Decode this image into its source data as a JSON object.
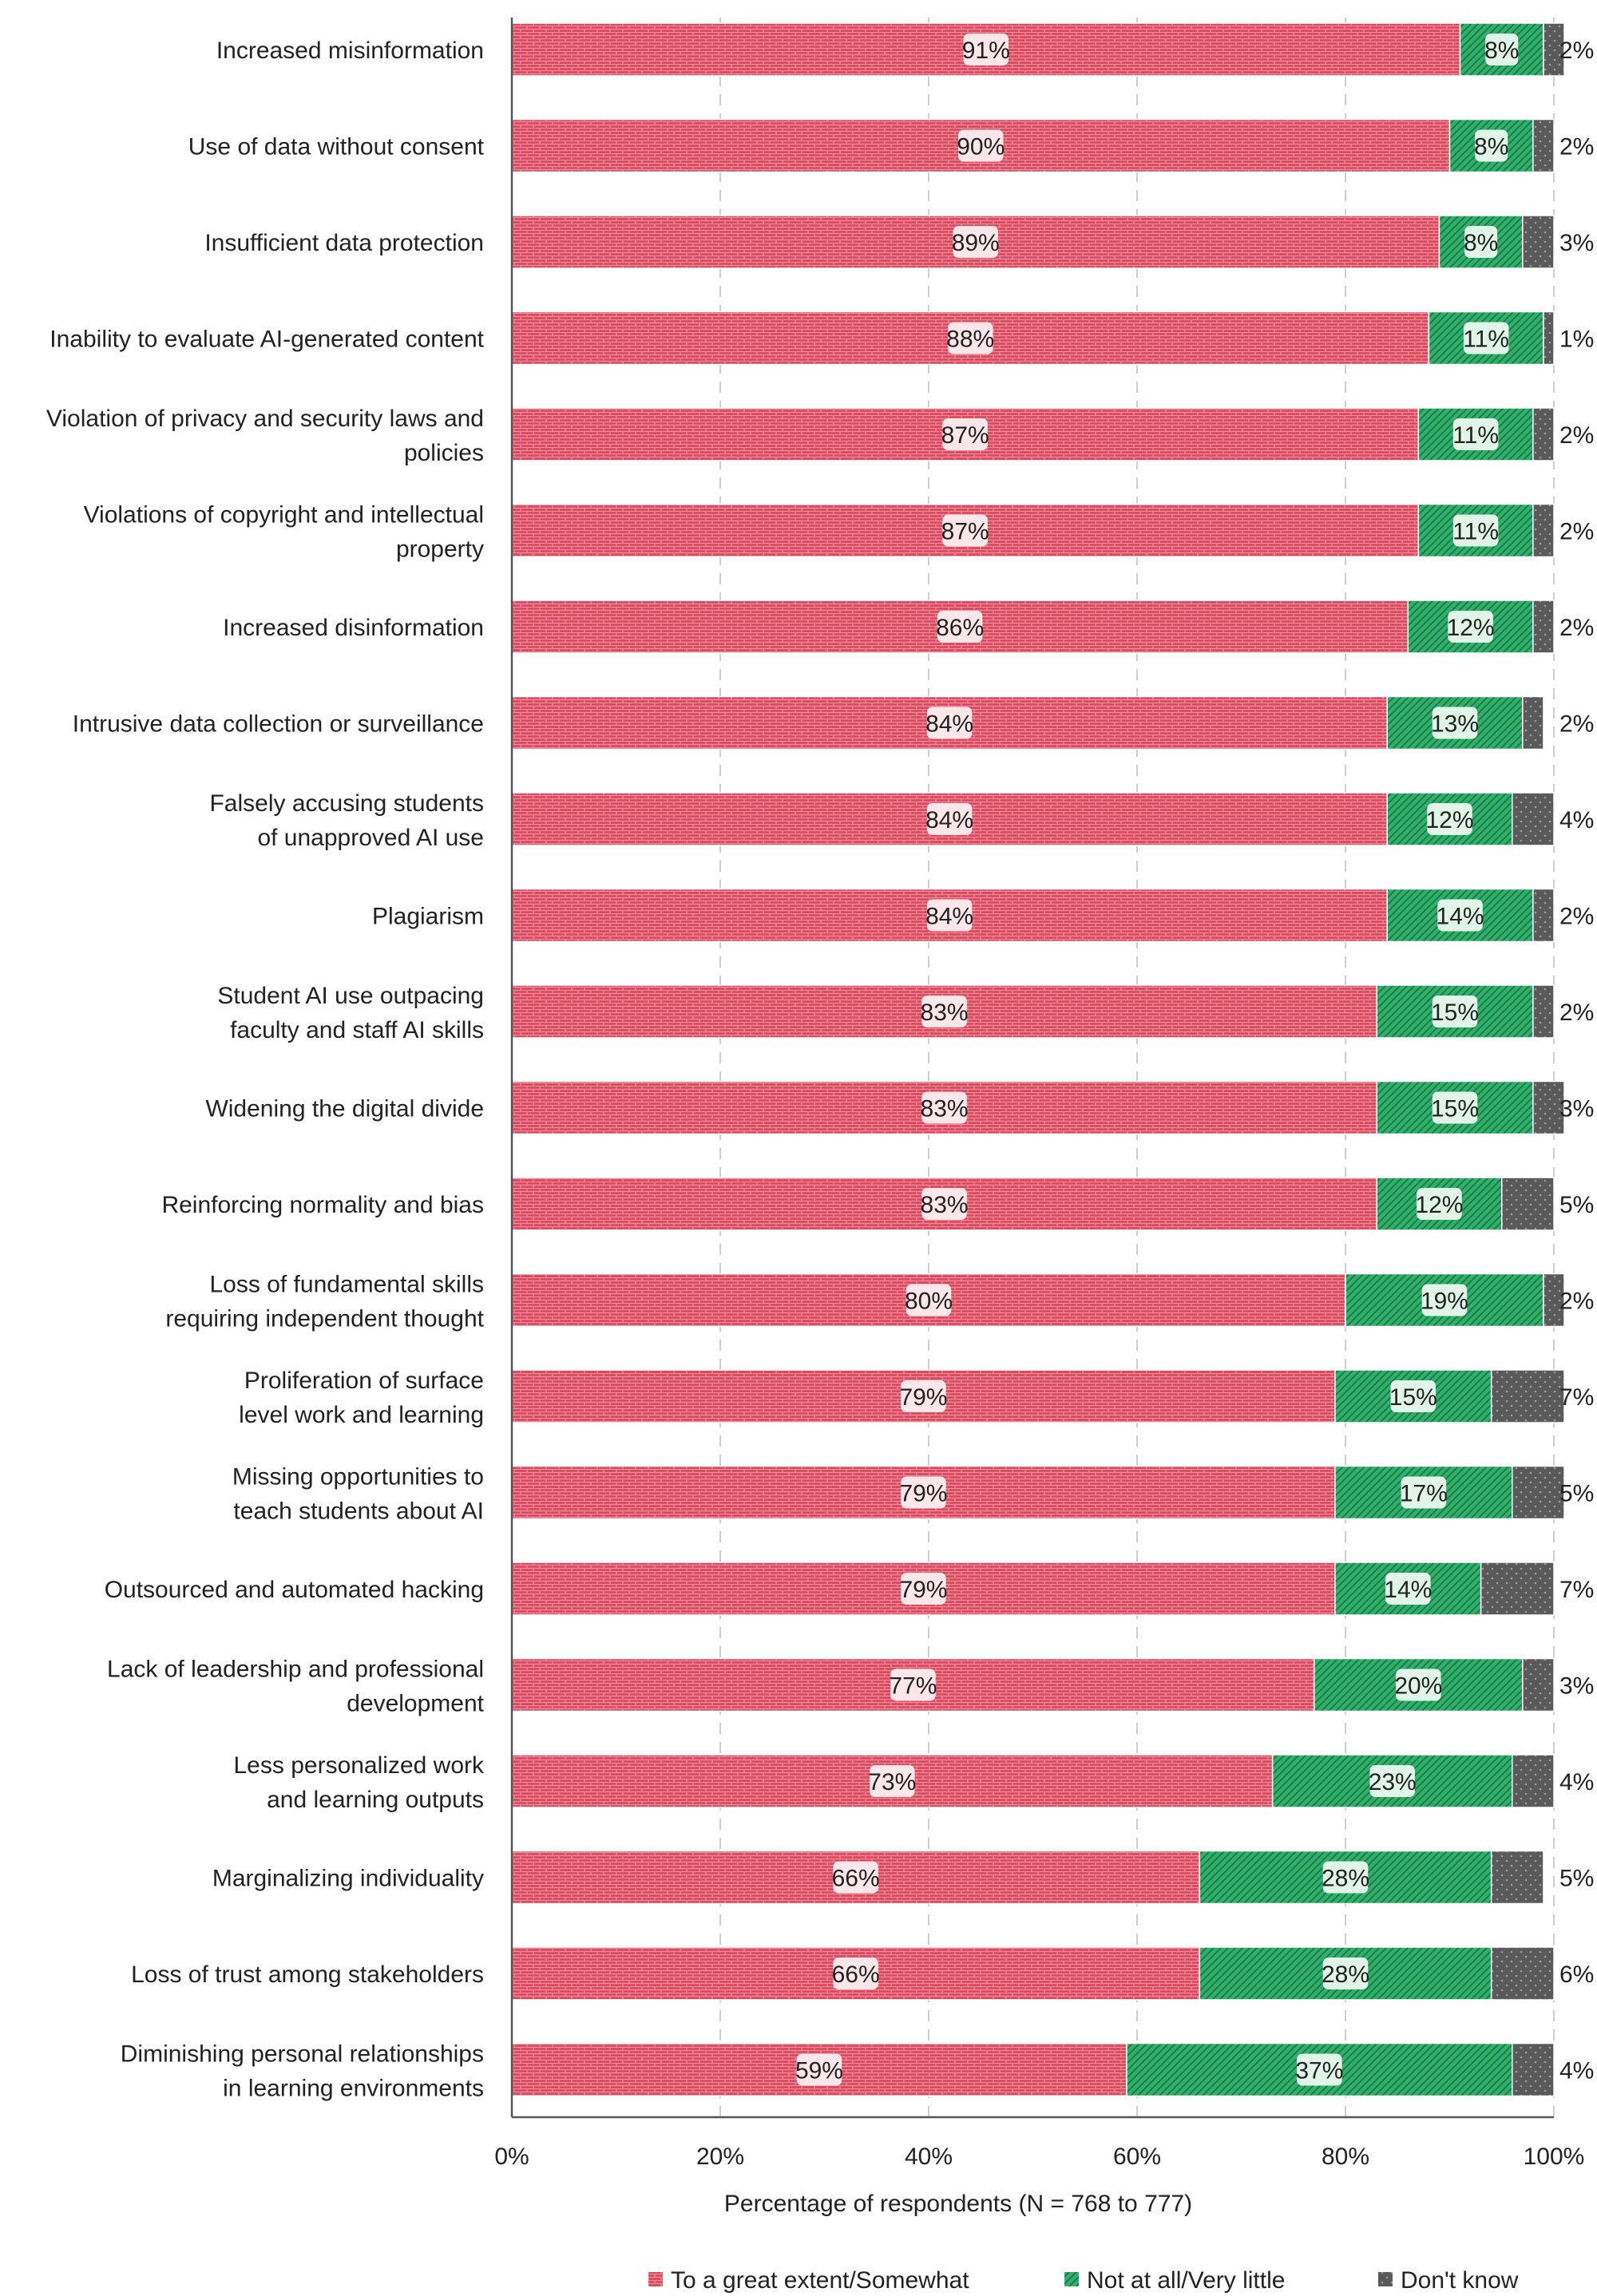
{
  "chart_data": {
    "type": "bar",
    "orientation": "horizontal",
    "stacked": true,
    "xlabel": "Percentage of respondents (N = 768 to 777)",
    "ylabel": "",
    "xlim": [
      0,
      100
    ],
    "xticks": [
      "0%",
      "20%",
      "40%",
      "60%",
      "80%",
      "100%"
    ],
    "xtick_values": [
      0,
      20,
      40,
      60,
      80,
      100
    ],
    "grid": "vertical dashed",
    "legend_position": "bottom",
    "categories": [
      [
        "Increased misinformation"
      ],
      [
        "Use of data without consent"
      ],
      [
        "Insufficient data protection"
      ],
      [
        "Inability to evaluate AI-generated content"
      ],
      [
        "Violation of privacy and security laws and",
        "policies"
      ],
      [
        "Violations of copyright and intellectual",
        "property"
      ],
      [
        "Increased disinformation"
      ],
      [
        "Intrusive data collection or surveillance"
      ],
      [
        "Falsely accusing students",
        "of unapproved AI use"
      ],
      [
        "Plagiarism"
      ],
      [
        "Student AI use outpacing",
        "faculty and staff AI skills"
      ],
      [
        "Widening the digital divide"
      ],
      [
        "Reinforcing normality and bias"
      ],
      [
        "Loss of fundamental skills",
        "requiring independent thought"
      ],
      [
        "Proliferation of surface",
        "level work and learning"
      ],
      [
        "Missing opportunities to",
        "teach students about AI"
      ],
      [
        "Outsourced and automated hacking"
      ],
      [
        "Lack of leadership and professional",
        "development"
      ],
      [
        "Less personalized work",
        "and learning outputs"
      ],
      [
        "Marginalizing individuality"
      ],
      [
        "Loss of trust among stakeholders"
      ],
      [
        "Diminishing personal relationships",
        "in learning environments"
      ]
    ],
    "series": [
      {
        "name": "To a great extent/Somewhat",
        "color": "#d94a5f",
        "pattern": "brick",
        "values": [
          91,
          90,
          89,
          88,
          87,
          87,
          86,
          84,
          84,
          84,
          83,
          83,
          83,
          80,
          79,
          79,
          79,
          77,
          73,
          66,
          66,
          59
        ]
      },
      {
        "name": "Not at all/Very little",
        "color": "#2fb06b",
        "pattern": "diagonal",
        "values": [
          8,
          8,
          8,
          11,
          11,
          11,
          12,
          13,
          12,
          14,
          15,
          15,
          12,
          19,
          15,
          17,
          14,
          20,
          23,
          28,
          28,
          37
        ]
      },
      {
        "name": "Don't know",
        "color": "#5a5a5a",
        "pattern": "dots",
        "values": [
          2,
          2,
          3,
          1,
          2,
          2,
          2,
          2,
          4,
          2,
          2,
          3,
          5,
          2,
          7,
          5,
          7,
          3,
          4,
          5,
          6,
          4
        ]
      }
    ]
  }
}
